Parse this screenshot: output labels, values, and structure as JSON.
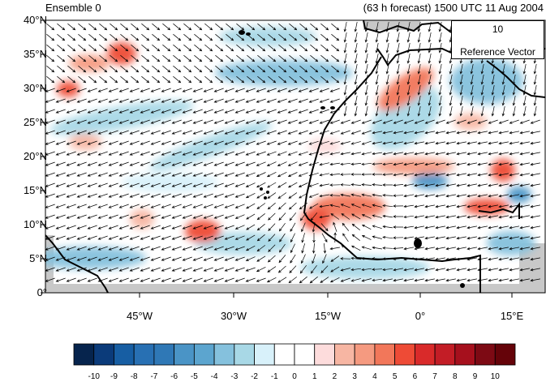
{
  "title_left": "Ensemble 0",
  "title_right": "(63 h forecast) 1500 UTC 11 Aug 2004",
  "y_axis_labels": [
    "40°N",
    "35°N",
    "30°N",
    "25°N",
    "20°N",
    "15°N",
    "10°N",
    "5°N",
    "0°"
  ],
  "x_axis_labels": [
    "45°W",
    "30°W",
    "15°W",
    "0°",
    "15°E"
  ],
  "reference_vector": {
    "magnitude": "10",
    "label": "Reference Vector"
  },
  "colorbar": {
    "ticks": [
      "-10",
      "-9",
      "-8",
      "-7",
      "-6",
      "-5",
      "-4",
      "-3",
      "-2",
      "-1",
      "0",
      "1",
      "2",
      "3",
      "4",
      "5",
      "6",
      "7",
      "8",
      "9",
      "10"
    ],
    "colors": [
      "#06244d",
      "#0b3b7a",
      "#175ea3",
      "#2870b3",
      "#2f78b6",
      "#4a94c6",
      "#5ca5cf",
      "#85c1dd",
      "#a8d8e6",
      "#d8f1fa",
      "#ffffff",
      "#ffffff",
      "#fddcdc",
      "#f7b6a3",
      "#f59a80",
      "#f2775a",
      "#ee4b36",
      "#d92a2a",
      "#c31d26",
      "#a6101d",
      "#7d0a14",
      "#650309"
    ]
  },
  "map": {
    "lon_range": [
      -57,
      20
    ],
    "lat_range": [
      0,
      40
    ],
    "land_color": "#c8c8c8"
  }
}
